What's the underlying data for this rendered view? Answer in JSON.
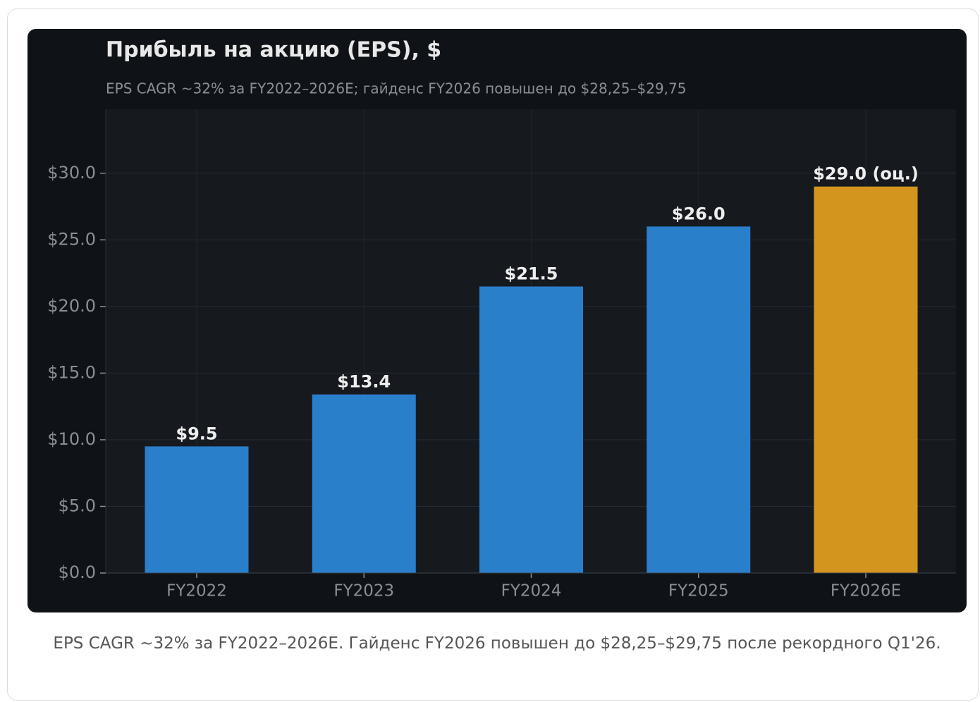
{
  "chart_data": {
    "type": "bar",
    "title": "Прибыль на акцию (EPS), $",
    "subtitle": "EPS CAGR ~32% за FY2022–2026E; гайденс FY2026 повышен до $28,25–$29,75",
    "categories": [
      "FY2022",
      "FY2023",
      "FY2024",
      "FY2025",
      "FY2026E"
    ],
    "values": [
      9.5,
      13.4,
      21.5,
      26.0,
      29.0
    ],
    "value_labels": [
      "$9.5",
      "$13.4",
      "$21.5",
      "$26.0",
      "$29.0 (оц.)"
    ],
    "colors": [
      "#2a7fcb",
      "#2a7fcb",
      "#2a7fcb",
      "#2a7fcb",
      "#d4951f"
    ],
    "ylim": [
      0,
      34.8
    ],
    "yticks": [
      {
        "value": 0,
        "label": "$0.0"
      },
      {
        "value": 5,
        "label": "$5.0"
      },
      {
        "value": 10,
        "label": "$10.0"
      },
      {
        "value": 15,
        "label": "$15.0"
      },
      {
        "value": 20,
        "label": "$20.0"
      },
      {
        "value": 25,
        "label": "$25.0"
      },
      {
        "value": 30,
        "label": "$30.0"
      }
    ],
    "grid": true,
    "caption": "EPS CAGR ~32% за FY2022–2026E. Гайденс FY2026 повышен до $28,25–$29,75 после рекордного Q1'26."
  }
}
